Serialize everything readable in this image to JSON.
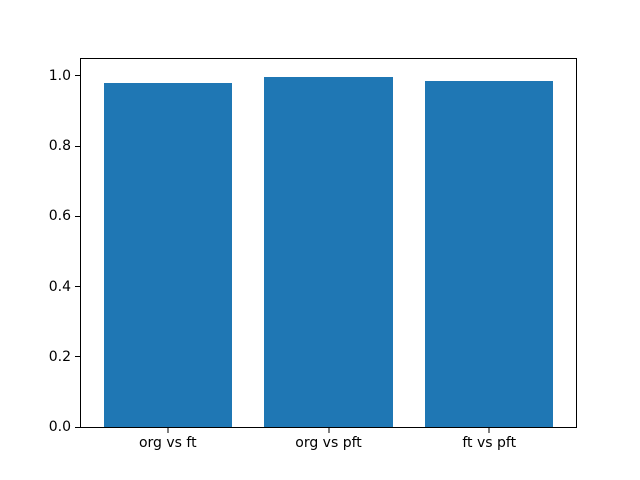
{
  "chart_data": {
    "type": "bar",
    "categories": [
      "org vs ft",
      "org vs pft",
      "ft vs pft"
    ],
    "values": [
      0.979,
      0.998,
      0.985
    ],
    "title": "",
    "xlabel": "",
    "ylabel": "",
    "ylim": [
      0,
      1.048
    ],
    "xlim": [
      -0.54,
      2.54
    ],
    "bar_width": 0.8,
    "yticks": [
      0.0,
      0.2,
      0.4,
      0.6,
      0.8,
      1.0
    ],
    "ytick_labels": [
      "0.0",
      "0.2",
      "0.4",
      "0.6",
      "0.8",
      "1.0"
    ],
    "grid": false,
    "legend": null,
    "colors": {
      "bar": "#1f77b4",
      "spine": "#000000",
      "background": "#ffffff",
      "tick_text": "#000000"
    }
  }
}
